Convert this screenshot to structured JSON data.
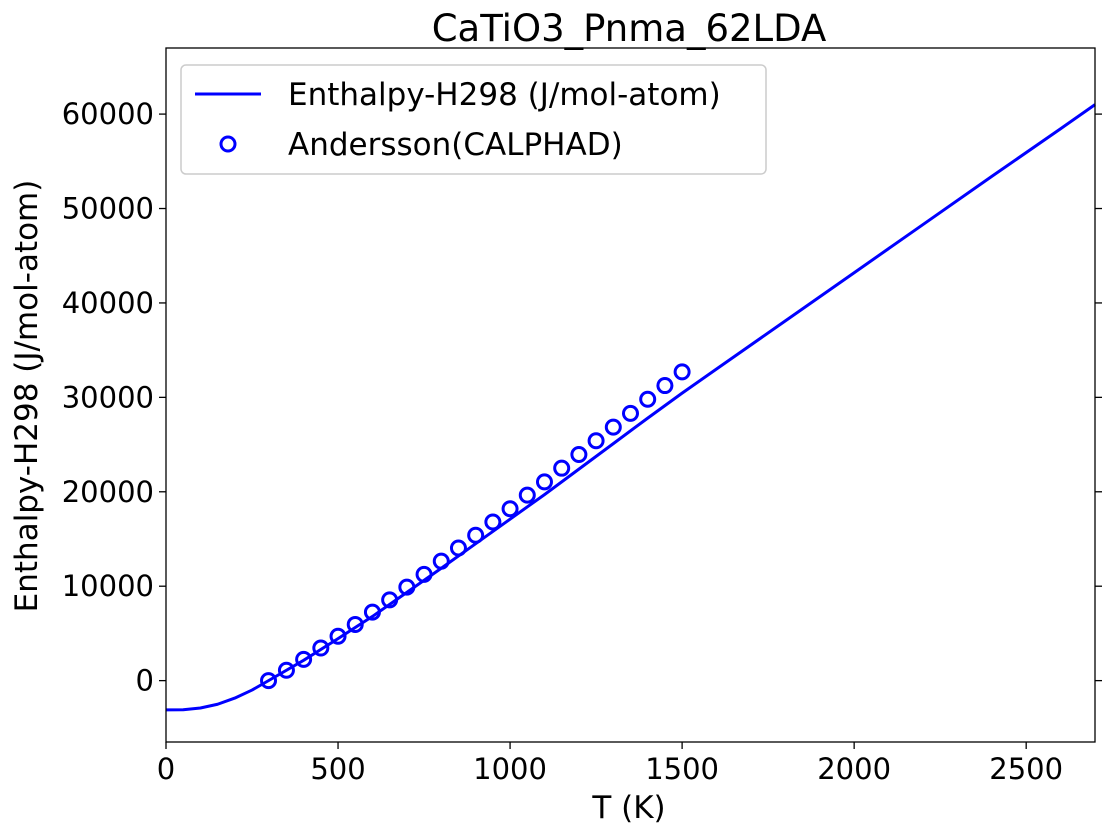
{
  "chart_data": {
    "type": "line",
    "title": "CaTiO3_Pnma_62LDA",
    "xlabel": "T (K)",
    "ylabel": "Enthalpy-H298 (J/mol-atom)",
    "xlim": [
      0,
      2700
    ],
    "ylim": [
      -6500,
      67000
    ],
    "x_ticks": [
      0,
      500,
      1000,
      1500,
      2000,
      2500
    ],
    "y_ticks": [
      0,
      10000,
      20000,
      30000,
      40000,
      50000,
      60000
    ],
    "grid": false,
    "legend_position": "top-left",
    "line_color": "#0000ff",
    "series": [
      {
        "name": "Enthalpy-H298 (J/mol-atom)",
        "style": "line",
        "x": [
          0,
          50,
          100,
          150,
          200,
          250,
          298,
          400,
          500,
          600,
          700,
          800,
          900,
          1000,
          1100,
          1200,
          1300,
          1400,
          1500,
          1600,
          1800,
          2000,
          2200,
          2400,
          2600,
          2700
        ],
        "y": [
          -3100,
          -3080,
          -2900,
          -2500,
          -1850,
          -1000,
          0,
          2150,
          4450,
          6800,
          9350,
          11900,
          14500,
          17100,
          19700,
          22400,
          25100,
          27800,
          30450,
          33000,
          38100,
          43200,
          48300,
          53400,
          58450,
          61000
        ]
      },
      {
        "name": "Andersson(CALPHAD)",
        "style": "markers",
        "x": [
          298,
          350,
          400,
          450,
          500,
          550,
          600,
          650,
          700,
          750,
          800,
          850,
          900,
          950,
          1000,
          1050,
          1100,
          1150,
          1200,
          1250,
          1300,
          1350,
          1400,
          1450,
          1500
        ],
        "y": [
          0,
          1100,
          2250,
          3450,
          4700,
          5950,
          7250,
          8550,
          9900,
          11250,
          12650,
          14050,
          15400,
          16800,
          18200,
          19650,
          21050,
          22500,
          23950,
          25400,
          26850,
          28300,
          29800,
          31250,
          32700
        ]
      }
    ]
  }
}
